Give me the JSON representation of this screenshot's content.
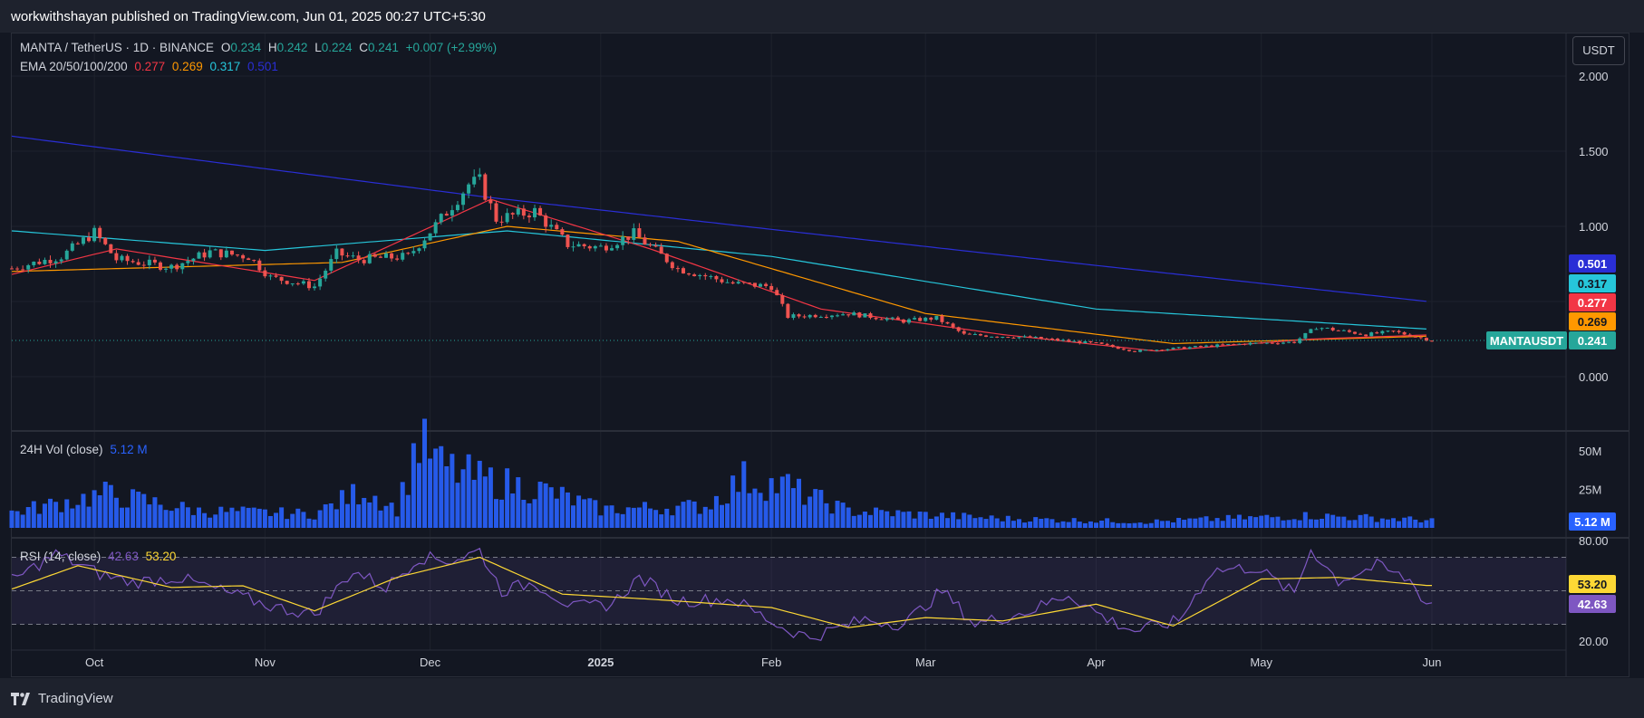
{
  "header": {
    "published": "workwithshayan published on TradingView.com, Jun 01, 2025 00:27 UTC+5:30"
  },
  "footer": {
    "brand": "TradingView"
  },
  "currency_button": "USDT",
  "legend": {
    "symbol": "MANTA / TetherUS · 1D · BINANCE",
    "o_label": "O",
    "o_value": "0.234",
    "h_label": "H",
    "h_value": "0.242",
    "l_label": "L",
    "l_value": "0.224",
    "c_label": "C",
    "c_value": "0.241",
    "change": "+0.007 (+2.99%)",
    "ema_label": "EMA 20/50/100/200",
    "ema20": "0.277",
    "ema50": "0.269",
    "ema100": "0.317",
    "ema200": "0.501",
    "vol_label": "24H Vol (close)",
    "vol_value": "5.12 M",
    "rsi_label": "RSI (14, close)",
    "rsi_value": "42.63",
    "rsi_ma_value": "53.20"
  },
  "colors": {
    "background": "#131722",
    "up": "#26a69a",
    "down": "#ef5350",
    "ema20": "#f23645",
    "ema50": "#ff9800",
    "ema100": "#26c6da",
    "ema200": "#2a2ed6",
    "volume": "#2962ff",
    "rsi": "#7e57c2",
    "rsi_ma": "#fdd835"
  },
  "price_labels": {
    "ema200": "0.501",
    "ema100": "0.317",
    "ema20": "0.277",
    "ema50": "0.269",
    "symbol_tag": "MANTAUSDT",
    "last": "0.241",
    "volume_last": "5.12 M",
    "rsi_ma": "53.20",
    "rsi": "42.63"
  },
  "chart_data": [
    {
      "type": "candlestick",
      "title": "MANTA / TetherUS · 1D · BINANCE",
      "x_ticks": [
        "Oct",
        "Nov",
        "Dec",
        "2025",
        "Feb",
        "Mar",
        "Apr",
        "May",
        "Jun"
      ],
      "x_range": [
        "2024-09-16",
        "2025-06-01"
      ],
      "y_ticks": [
        "2.000",
        "1.500",
        "1.000",
        "0.000"
      ],
      "ylim": [
        -0.3,
        2.1
      ],
      "grid": true,
      "price_anchors": [
        [
          "2024-09-16",
          0.72
        ],
        [
          "2024-09-25",
          0.8
        ],
        [
          "2024-10-01",
          0.96
        ],
        [
          "2024-10-05",
          0.78
        ],
        [
          "2024-10-15",
          0.73
        ],
        [
          "2024-10-22",
          0.83
        ],
        [
          "2024-10-29",
          0.8
        ],
        [
          "2024-11-02",
          0.66
        ],
        [
          "2024-11-10",
          0.6
        ],
        [
          "2024-11-14",
          0.82
        ],
        [
          "2024-11-18",
          0.78
        ],
        [
          "2024-11-27",
          0.8
        ],
        [
          "2024-12-03",
          1.05
        ],
        [
          "2024-12-08",
          1.28
        ],
        [
          "2024-12-10",
          1.3
        ],
        [
          "2024-12-13",
          1.05
        ],
        [
          "2024-12-20",
          1.1
        ],
        [
          "2024-12-26",
          0.88
        ],
        [
          "2025-01-01",
          0.86
        ],
        [
          "2025-01-07",
          0.95
        ],
        [
          "2025-01-15",
          0.72
        ],
        [
          "2025-01-25",
          0.62
        ],
        [
          "2025-02-01",
          0.6
        ],
        [
          "2025-02-04",
          0.4
        ],
        [
          "2025-02-15",
          0.42
        ],
        [
          "2025-02-25",
          0.37
        ],
        [
          "2025-03-03",
          0.39
        ],
        [
          "2025-03-08",
          0.28
        ],
        [
          "2025-03-20",
          0.26
        ],
        [
          "2025-04-01",
          0.22
        ],
        [
          "2025-04-08",
          0.17
        ],
        [
          "2025-04-16",
          0.19
        ],
        [
          "2025-04-28",
          0.22
        ],
        [
          "2025-05-07",
          0.23
        ],
        [
          "2025-05-11",
          0.33
        ],
        [
          "2025-05-20",
          0.28
        ],
        [
          "2025-05-25",
          0.3
        ],
        [
          "2025-06-01",
          0.241
        ]
      ],
      "ema": {
        "ema200": [
          [
            "2024-09-16",
            1.6
          ],
          [
            "2024-12-10",
            1.2
          ],
          [
            "2025-02-01",
            0.98
          ],
          [
            "2025-04-01",
            0.74
          ],
          [
            "2025-05-31",
            0.501
          ]
        ],
        "ema100": [
          [
            "2024-09-16",
            0.97
          ],
          [
            "2024-11-01",
            0.84
          ],
          [
            "2024-12-15",
            0.97
          ],
          [
            "2025-02-01",
            0.8
          ],
          [
            "2025-04-01",
            0.45
          ],
          [
            "2025-05-31",
            0.317
          ]
        ],
        "ema50": [
          [
            "2024-09-16",
            0.7
          ],
          [
            "2024-11-15",
            0.76
          ],
          [
            "2024-12-15",
            1.0
          ],
          [
            "2025-01-15",
            0.9
          ],
          [
            "2025-03-01",
            0.42
          ],
          [
            "2025-04-15",
            0.22
          ],
          [
            "2025-05-31",
            0.269
          ]
        ],
        "ema20": [
          [
            "2024-09-16",
            0.68
          ],
          [
            "2024-10-05",
            0.85
          ],
          [
            "2024-11-10",
            0.64
          ],
          [
            "2024-12-12",
            1.18
          ],
          [
            "2025-01-10",
            0.85
          ],
          [
            "2025-02-10",
            0.45
          ],
          [
            "2025-03-15",
            0.28
          ],
          [
            "2025-04-12",
            0.17
          ],
          [
            "2025-05-10",
            0.25
          ],
          [
            "2025-05-31",
            0.277
          ]
        ]
      }
    },
    {
      "type": "bar",
      "title": "24H Vol (close)",
      "y_ticks": [
        "50M",
        "25M"
      ],
      "ylim": [
        0,
        57
      ],
      "volume_anchors": [
        [
          "2024-09-16",
          10
        ],
        [
          "2024-10-03",
          22
        ],
        [
          "2024-10-20",
          11
        ],
        [
          "2024-11-10",
          9
        ],
        [
          "2024-11-19",
          25
        ],
        [
          "2024-11-25",
          12
        ],
        [
          "2024-11-29",
          55
        ],
        [
          "2024-12-03",
          40
        ],
        [
          "2024-12-10",
          32
        ],
        [
          "2024-12-22",
          24
        ],
        [
          "2025-01-01",
          12
        ],
        [
          "2025-01-20",
          14
        ],
        [
          "2025-01-27",
          32
        ],
        [
          "2025-02-04",
          26
        ],
        [
          "2025-02-15",
          11
        ],
        [
          "2025-03-15",
          6
        ],
        [
          "2025-04-10",
          4
        ],
        [
          "2025-05-10",
          8
        ],
        [
          "2025-05-31",
          5.12
        ]
      ],
      "volume_spikes": [
        [
          "2024-11-28",
          55
        ],
        [
          "2024-12-01",
          45
        ],
        [
          "2025-01-25",
          34
        ],
        [
          "2025-02-04",
          35
        ]
      ]
    },
    {
      "type": "line",
      "title": "RSI (14, close)",
      "y_ticks": [
        "80.00",
        "20.00"
      ],
      "ylim": [
        18,
        82
      ],
      "bands": [
        70,
        50,
        30
      ],
      "rsi_anchors": [
        [
          "2024-09-16",
          56
        ],
        [
          "2024-09-24",
          72
        ],
        [
          "2024-10-02",
          60
        ],
        [
          "2024-10-08",
          55
        ],
        [
          "2024-10-16",
          58
        ],
        [
          "2024-10-24",
          50
        ],
        [
          "2024-11-03",
          40
        ],
        [
          "2024-11-10",
          36
        ],
        [
          "2024-11-17",
          62
        ],
        [
          "2024-11-23",
          52
        ],
        [
          "2024-11-29",
          70
        ],
        [
          "2024-12-05",
          68
        ],
        [
          "2024-12-10",
          74
        ],
        [
          "2024-12-14",
          50
        ],
        [
          "2024-12-20",
          55
        ],
        [
          "2024-12-27",
          40
        ],
        [
          "2025-01-03",
          42
        ],
        [
          "2025-01-08",
          58
        ],
        [
          "2025-01-15",
          44
        ],
        [
          "2025-01-25",
          45
        ],
        [
          "2025-02-03",
          28
        ],
        [
          "2025-02-08",
          22
        ],
        [
          "2025-02-18",
          33
        ],
        [
          "2025-02-25",
          30
        ],
        [
          "2025-03-04",
          50
        ],
        [
          "2025-03-10",
          30
        ],
        [
          "2025-03-20",
          38
        ],
        [
          "2025-03-27",
          48
        ],
        [
          "2025-04-03",
          33
        ],
        [
          "2025-04-08",
          26
        ],
        [
          "2025-04-16",
          32
        ],
        [
          "2025-04-22",
          62
        ],
        [
          "2025-04-30",
          64
        ],
        [
          "2025-05-07",
          48
        ],
        [
          "2025-05-10",
          75
        ],
        [
          "2025-05-15",
          56
        ],
        [
          "2025-05-22",
          65
        ],
        [
          "2025-05-28",
          56
        ],
        [
          "2025-05-31",
          42.63
        ]
      ],
      "rsi_ma_anchors": [
        [
          "2024-09-16",
          51
        ],
        [
          "2024-09-28",
          65
        ],
        [
          "2024-10-15",
          52
        ],
        [
          "2024-10-28",
          53
        ],
        [
          "2024-11-10",
          38
        ],
        [
          "2024-11-25",
          58
        ],
        [
          "2024-12-10",
          70
        ],
        [
          "2024-12-25",
          48
        ],
        [
          "2025-01-10",
          45
        ],
        [
          "2025-02-01",
          40
        ],
        [
          "2025-02-15",
          28
        ],
        [
          "2025-03-01",
          34
        ],
        [
          "2025-03-15",
          32
        ],
        [
          "2025-04-01",
          42
        ],
        [
          "2025-04-15",
          29
        ],
        [
          "2025-05-01",
          57
        ],
        [
          "2025-05-15",
          58
        ],
        [
          "2025-05-31",
          53.2
        ]
      ]
    }
  ]
}
